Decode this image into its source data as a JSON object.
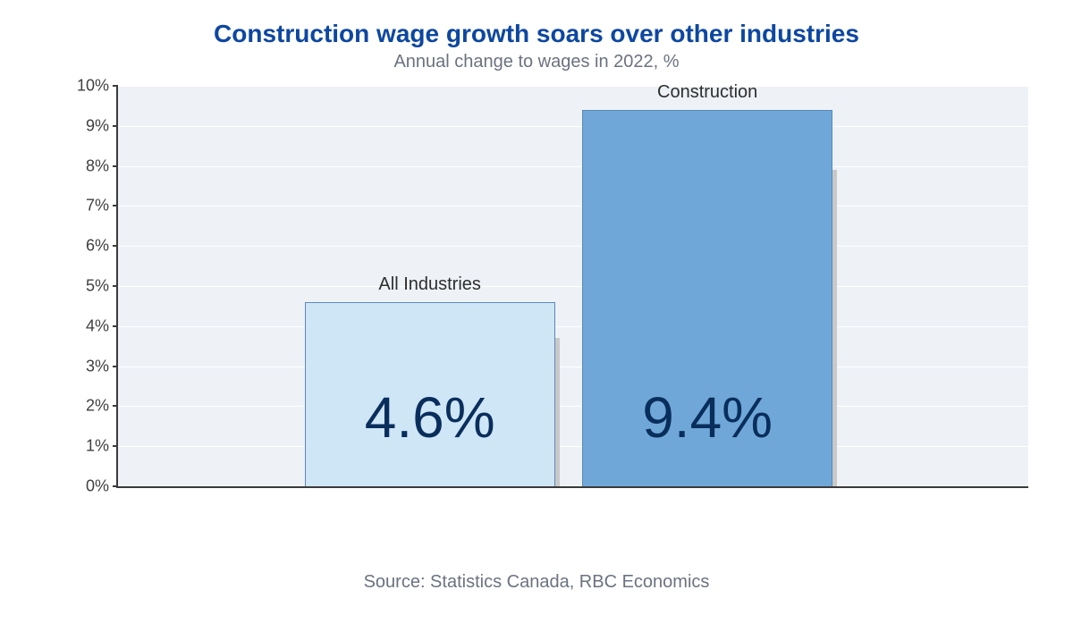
{
  "title": {
    "text": "Construction wage growth soars over other industries",
    "color": "#0d47a1",
    "fontsize": 28
  },
  "subtitle": {
    "text": "Annual change to wages in 2022, %",
    "color": "#6b7280",
    "fontsize": 20
  },
  "source": {
    "text": "Source: Statistics Canada, RBC Economics",
    "color": "#6b7280",
    "fontsize": 20
  },
  "chart": {
    "type": "bar",
    "ylim": [
      0,
      10
    ],
    "ytick_step": 1,
    "ytick_suffix": "%",
    "ytick_fontsize": 18,
    "ytick_color": "#404040",
    "background_color": "#eef2f7",
    "grid_color": "#ffffff",
    "axis_color": "#3b3b3b",
    "bar_label_fontsize": 20,
    "bar_label_color": "#2d2d2d",
    "bar_value_fontsize": 64,
    "bar_value_color": "#0a2e5c",
    "bar_border_color": "#5a88b8",
    "shadow_color": "#c9c9c9",
    "bars": [
      {
        "label": "All Industries",
        "value": 4.6,
        "display": "4.6%",
        "color": "#cfe6f7",
        "shadow_value": 3.7,
        "left_pct": 20.5,
        "width_pct": 27.5,
        "shadow_offset_pct": 1.8
      },
      {
        "label": "Construction",
        "value": 9.4,
        "display": "9.4%",
        "color": "#6fa8d8",
        "shadow_value": 7.9,
        "left_pct": 51.0,
        "width_pct": 27.5,
        "shadow_offset_pct": 1.8
      }
    ]
  }
}
